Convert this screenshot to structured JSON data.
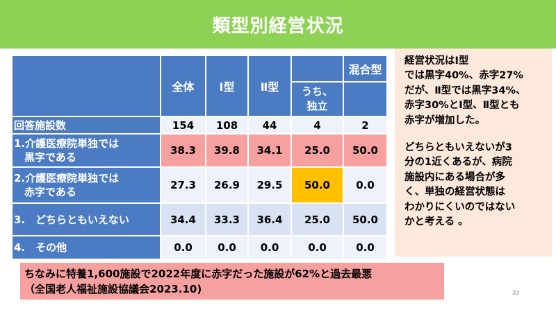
{
  "title": "類型別経営状況",
  "table": {
    "headers": {
      "all": "全体",
      "type1": "Ⅰ型",
      "type2": "Ⅱ型",
      "mixed": "混合型",
      "mixed_sub": "うち、\n独立"
    },
    "rows": [
      {
        "label": "回答施設数",
        "values": [
          "154",
          "108",
          "44",
          "4",
          "2"
        ]
      },
      {
        "label": "1.介護医療院単独では\n　黒字である",
        "values": [
          "38.3",
          "39.8",
          "34.1",
          "25.0",
          "50.0"
        ]
      },
      {
        "label": "2.介護医療院単独では\n　赤字である",
        "values": [
          "27.3",
          "26.9",
          "29.5",
          "50.0",
          "0.0"
        ]
      },
      {
        "label": "3.　どちらともいえない",
        "values": [
          "34.4",
          "33.3",
          "36.4",
          "25.0",
          "50.0"
        ]
      },
      {
        "label": "4.　その他",
        "values": [
          "0.0",
          "0.0",
          "0.0",
          "0.0",
          "0.0"
        ]
      }
    ]
  },
  "note": {
    "para1": "経営状況はⅠ型\nでは黒字40%、赤字27%\nだが、Ⅱ型では黒字34%、\n赤字30%とⅠ型、Ⅱ型とも\n赤字が増加した。",
    "para2": "どちらともいえないが3\n分の1近くあるが、病院\n施設内にある場合が多\nく、単独の経営状態は\nわかりにくいのではない\nかと考える 。"
  },
  "footer": {
    "line1": "ちなみに特養1,600施設で2022年度に赤字だった施設が62%と過去最悪",
    "line2": "（全国老人福祉施設協議会2023.10)"
  },
  "page_number": "33",
  "colors": {
    "title_bg": "#8dd155",
    "header_blue": "#4b7bc2",
    "highlight_pink": "#f6a0a0",
    "highlight_orange": "#ffc000",
    "note_bg": "#fde8dc"
  }
}
